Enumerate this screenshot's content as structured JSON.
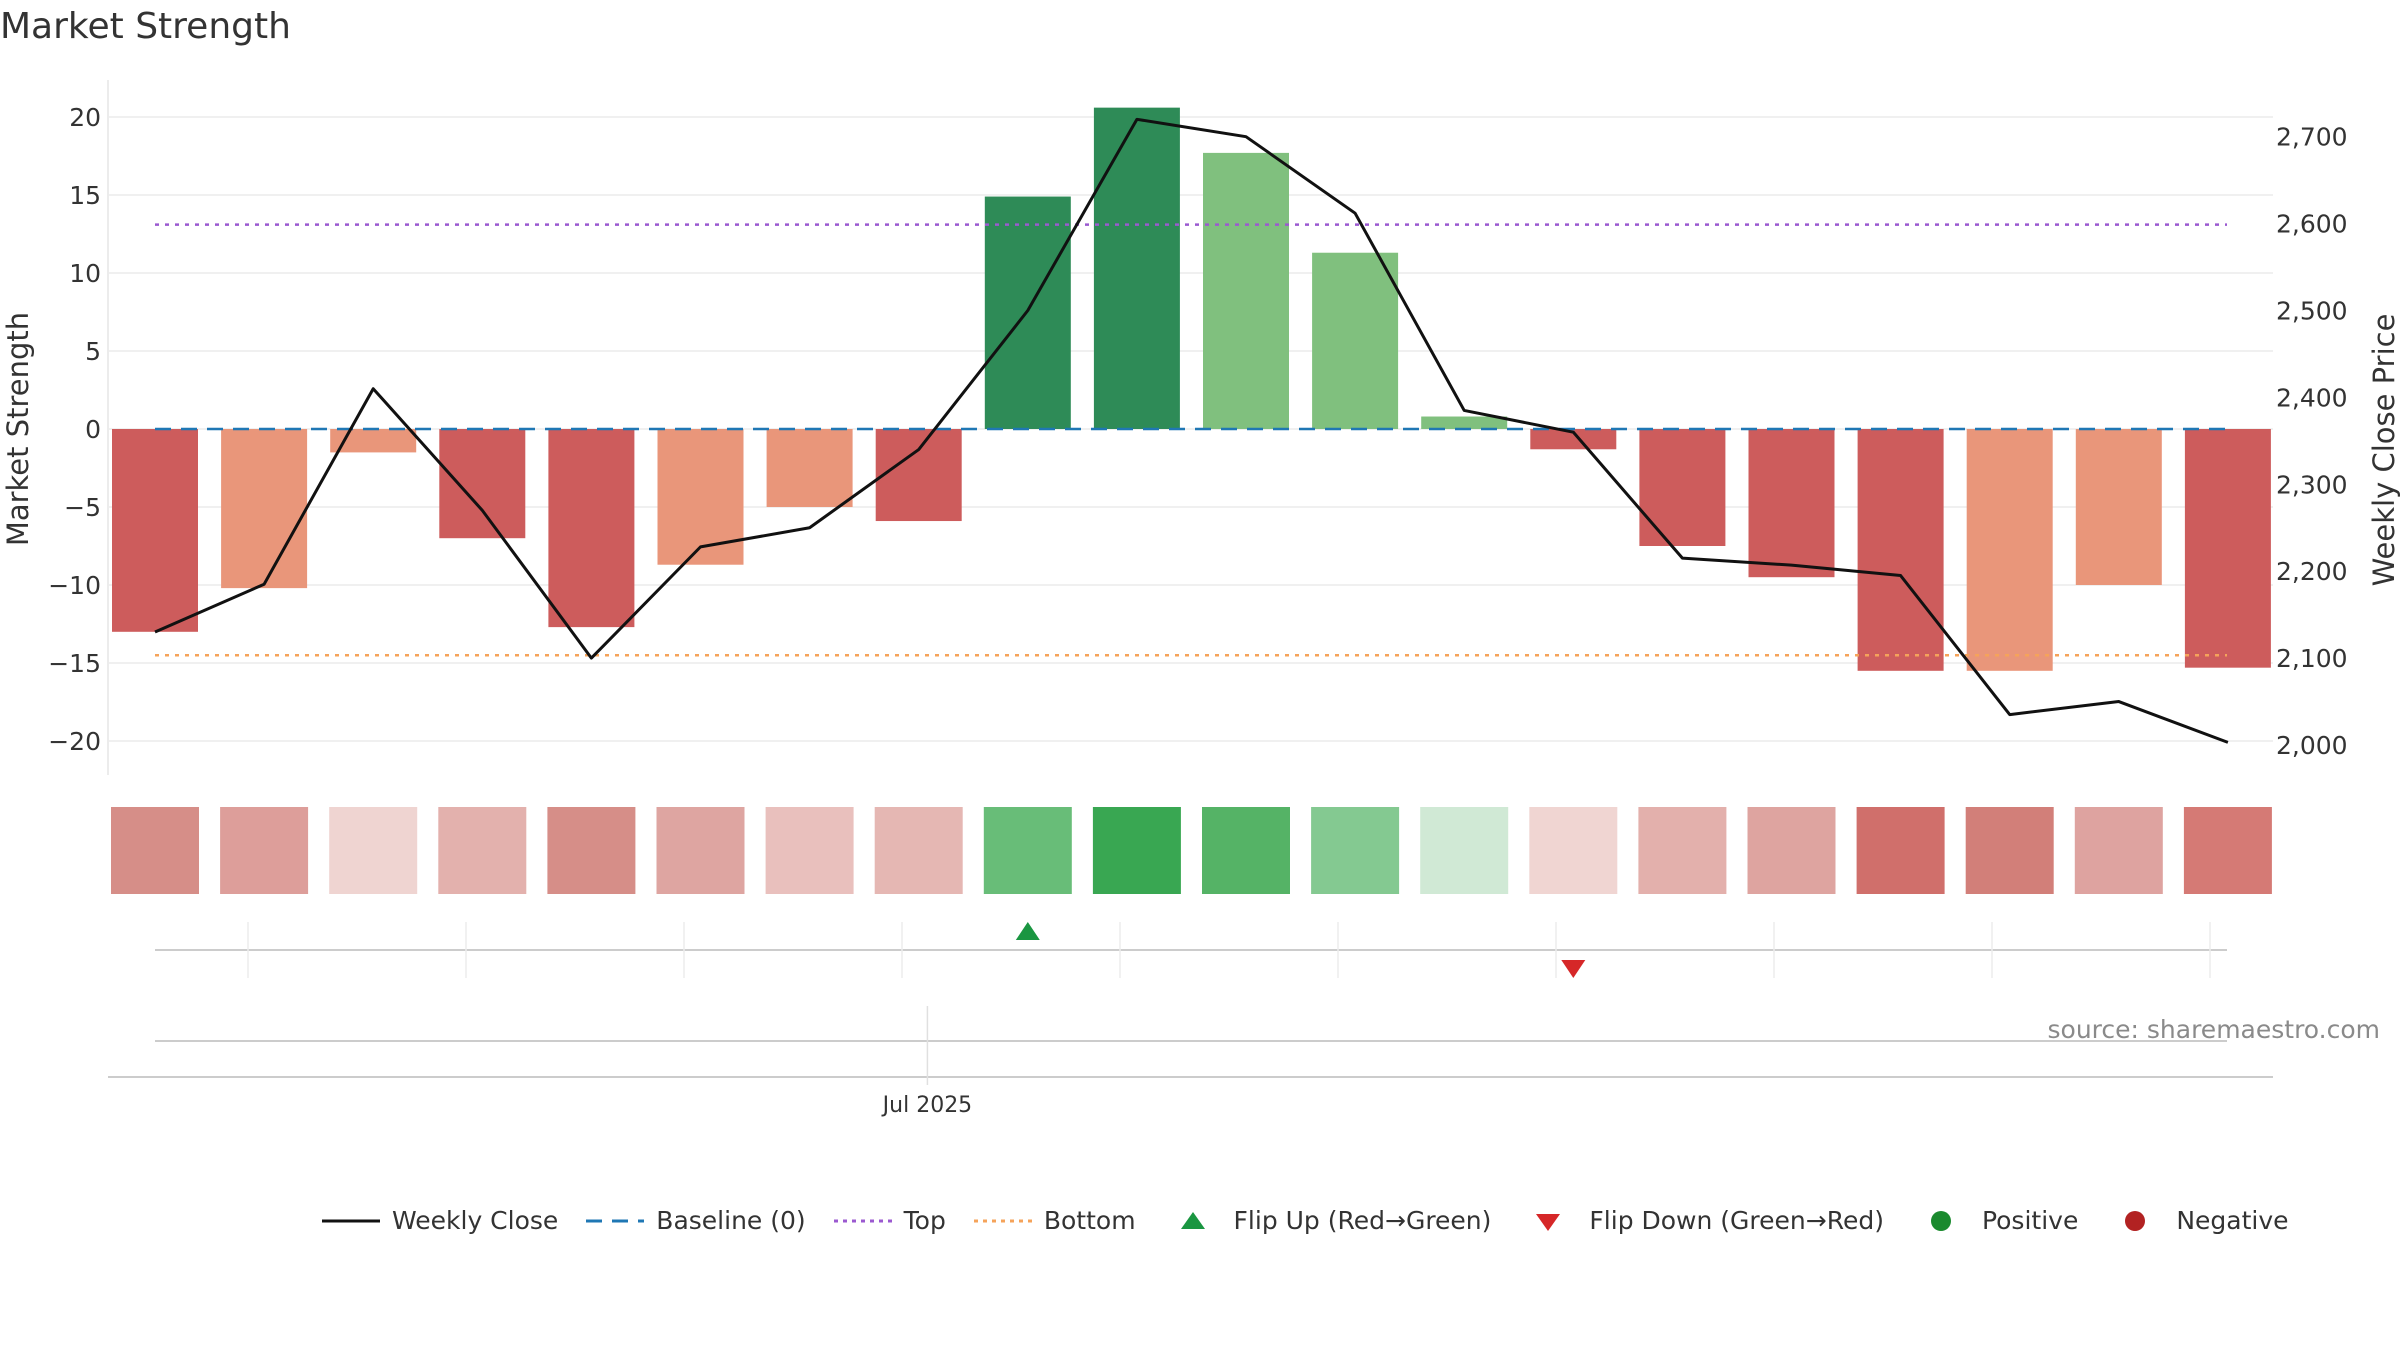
{
  "title": "Market Strength",
  "source": "source: sharemaestro.com",
  "colors": {
    "strong_positive": "#2e8b57",
    "mild_positive": "#80c07e",
    "strong_negative": "#cd5c5c",
    "mild_negative": "#e9967a",
    "weekly_close": "#111111",
    "baseline": "#1f77b4",
    "top": "#9b59d0",
    "bottom": "#f5a35a",
    "flip_up": "#1a9641",
    "flip_down": "#d62728",
    "positive": "#1a8a2e",
    "negative": "#b22222"
  },
  "legend": [
    {
      "key": "weekly_close",
      "label": "Weekly Close",
      "kind": "line"
    },
    {
      "key": "baseline",
      "label": "Baseline (0)",
      "kind": "dashed"
    },
    {
      "key": "top",
      "label": "Top",
      "kind": "dotted"
    },
    {
      "key": "bottom",
      "label": "Bottom",
      "kind": "dotted"
    },
    {
      "key": "flip_up",
      "label": "Flip Up (Red→Green)",
      "kind": "triangle-up"
    },
    {
      "key": "flip_down",
      "label": "Flip Down (Green→Red)",
      "kind": "triangle-down"
    },
    {
      "key": "positive",
      "label": "Positive",
      "kind": "dot"
    },
    {
      "key": "negative",
      "label": "Negative",
      "kind": "dot"
    }
  ],
  "chart_data": {
    "type": "bar",
    "ylabel": "Market Strength",
    "y2label": "Weekly Close Price",
    "ylim": [
      -22,
      22.5
    ],
    "y2lim": [
      1985,
      2723
    ],
    "yticks": [
      20,
      15,
      10,
      5,
      0,
      -5,
      -10,
      -15,
      -20
    ],
    "ytick_labels": [
      "20",
      "15",
      "10",
      "5",
      "0",
      "−5",
      "−10",
      "−15",
      "−20"
    ],
    "y2ticks": [
      2700,
      2600,
      2500,
      2400,
      2300,
      2200,
      2100,
      2000
    ],
    "y2tick_labels": [
      "2,700",
      "2,600",
      "2,500",
      "2,400",
      "2,300",
      "2,200",
      "2,100",
      "2,000"
    ],
    "x_tick_label": "Jul 2025",
    "x_tick_index": 7.08,
    "baseline": 0,
    "top": 13.1,
    "bottom": -14.5,
    "bars": [
      {
        "value": -13.0,
        "tone": "strong_negative"
      },
      {
        "value": -10.2,
        "tone": "mild_negative"
      },
      {
        "value": -1.5,
        "tone": "mild_negative"
      },
      {
        "value": -7.0,
        "tone": "strong_negative"
      },
      {
        "value": -12.7,
        "tone": "strong_negative"
      },
      {
        "value": -8.7,
        "tone": "mild_negative"
      },
      {
        "value": -5.0,
        "tone": "mild_negative"
      },
      {
        "value": -5.9,
        "tone": "strong_negative"
      },
      {
        "value": 14.9,
        "tone": "strong_positive"
      },
      {
        "value": 20.6,
        "tone": "strong_positive"
      },
      {
        "value": 17.7,
        "tone": "mild_positive"
      },
      {
        "value": 11.3,
        "tone": "mild_positive"
      },
      {
        "value": 0.8,
        "tone": "mild_positive"
      },
      {
        "value": -1.3,
        "tone": "strong_negative"
      },
      {
        "value": -7.5,
        "tone": "strong_negative"
      },
      {
        "value": -9.5,
        "tone": "strong_negative"
      },
      {
        "value": -15.5,
        "tone": "strong_negative"
      },
      {
        "value": -15.5,
        "tone": "mild_negative"
      },
      {
        "value": -10.0,
        "tone": "mild_negative"
      },
      {
        "value": -15.3,
        "tone": "strong_negative"
      }
    ],
    "weekly_close": [
      2130,
      2185,
      2410,
      2270,
      2100,
      2228,
      2250,
      2340,
      2500,
      2720,
      2700,
      2612,
      2385,
      2360,
      2215,
      2207,
      2195,
      2035,
      2050,
      2003
    ],
    "heat_strip": [
      "#d68e88",
      "#dd9e9a",
      "#efd4d1",
      "#e3b1ad",
      "#d68e88",
      "#dea5a1",
      "#e9c0bd",
      "#e5b7b3",
      "#68bd78",
      "#39a752",
      "#55b366",
      "#84c991",
      "#d0e9d5",
      "#f0d5d2",
      "#e3b0ac",
      "#dea4a0",
      "#d06f6b",
      "#d27f79",
      "#dea3a0",
      "#d57a75"
    ],
    "flips": [
      {
        "index": 8,
        "type": "up"
      },
      {
        "index": 13,
        "type": "down"
      }
    ]
  }
}
